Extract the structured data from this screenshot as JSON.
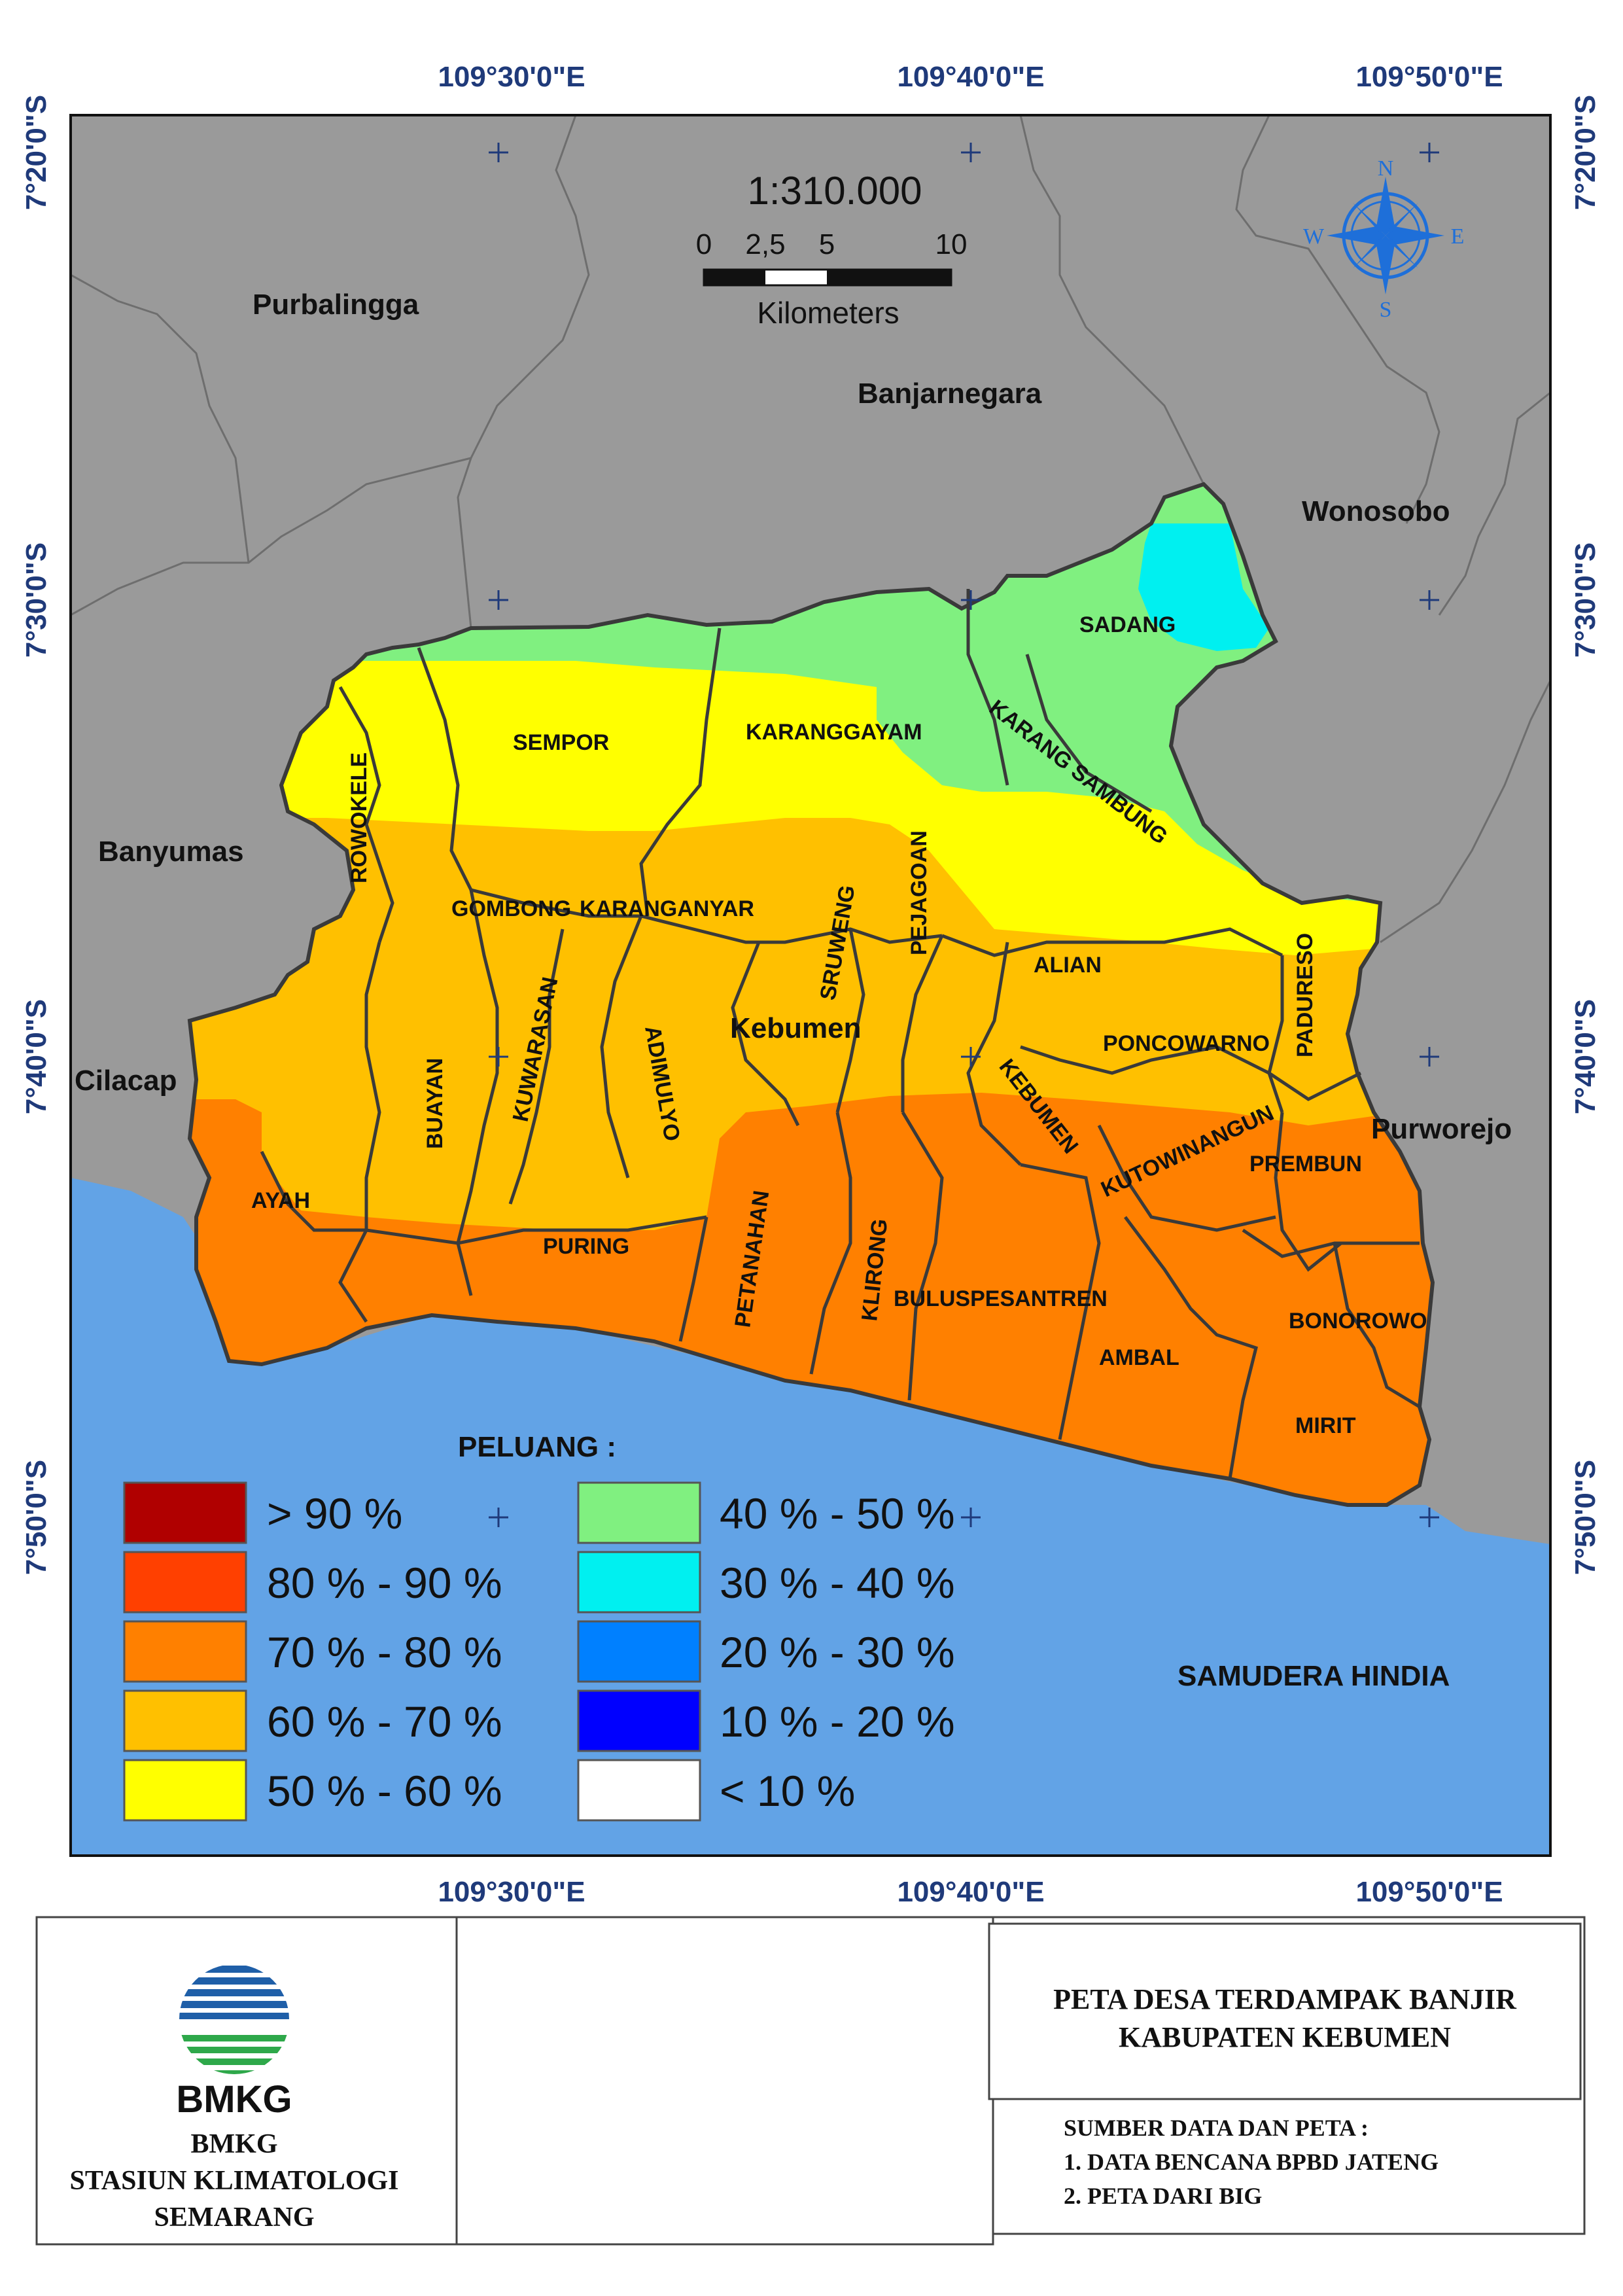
{
  "coords": {
    "lon_labels": [
      "109°30'0\"E",
      "109°40'0\"E",
      "109°50'0\"E"
    ],
    "lat_labels": [
      "7°20'0\"S",
      "7°30'0\"S",
      "7°40'0\"S",
      "7°50'0\"S"
    ]
  },
  "scale": {
    "ratio": "1:310.000",
    "ticks": [
      "0",
      "2,5",
      "5",
      "10"
    ],
    "unit": "Kilometers"
  },
  "compass": {
    "n": "N",
    "s": "S",
    "e": "E",
    "w": "W"
  },
  "regions": {
    "purbalingga": "Purbalingga",
    "banjarnegara": "Banjarnegara",
    "wonosobo": "Wonosobo",
    "banyumas": "Banyumas",
    "cilacap": "Cilacap",
    "purworejo": "Purworejo",
    "kebumen": "Kebumen",
    "ocean": "SAMUDERA HINDIA"
  },
  "districts": {
    "sadang": "SADANG",
    "sempor": "SEMPOR",
    "karanggayam": "KARANGGAYAM",
    "karang_sambung": "KARANG SAMBUNG",
    "rowokele": "ROWOKELE",
    "gombong": "GOMBONG",
    "karanganyar": "KARANGANYAR",
    "sruweng": "SRUWENG",
    "pejagoan": "PEJAGOAN",
    "alian": "ALIAN",
    "padureso": "PADURESO",
    "poncowarno": "PONCOWARNO",
    "buayan": "BUAYAN",
    "kuwarasan": "KUWARASAN",
    "adimulyo": "ADIMULYO",
    "kebumen": "KEBUMEN",
    "kutowinangun": "KUTOWINANGUN",
    "prembun": "PREMBUN",
    "ayah": "AYAH",
    "puring": "PURING",
    "petanahan": "PETANAHAN",
    "klirong": "KLIRONG",
    "buluspesantren": "BULUSPESANTREN",
    "ambal": "AMBAL",
    "bonorowo": "BONOROWO",
    "mirit": "MIRIT"
  },
  "legend": {
    "title": "PELUANG :",
    "items": [
      {
        "label": "> 90 %",
        "color": "#b00000"
      },
      {
        "label": "80 % - 90 %",
        "color": "#ff4000"
      },
      {
        "label": "70 % - 80 %",
        "color": "#ff8000"
      },
      {
        "label": "60 % - 70 %",
        "color": "#ffc000"
      },
      {
        "label": "50 % - 60 %",
        "color": "#ffff00"
      },
      {
        "label": "40 % - 50 %",
        "color": "#80f080"
      },
      {
        "label": "30 % - 40 %",
        "color": "#00f0f0"
      },
      {
        "label": "20 % - 30 %",
        "color": "#0080ff"
      },
      {
        "label": "10 % - 20 %",
        "color": "#0000ff"
      },
      {
        "label": "< 10 %",
        "color": "#ffffff"
      }
    ]
  },
  "colors": {
    "land_outside": "#9a9a9a",
    "ocean": "#62a3e6",
    "coord_text": "#1f3a7a",
    "compass": "#1e6fd9"
  },
  "footer": {
    "logo_text": "BMKG",
    "org_line1": "BMKG",
    "org_line2": "STASIUN KLIMATOLOGI",
    "org_line3": "SEMARANG",
    "title_line1": "PETA DESA TERDAMPAK BANJIR",
    "title_line2": "KABUPATEN KEBUMEN",
    "source_title": "SUMBER DATA DAN PETA :",
    "source_1": "1. DATA BENCANA BPBD JATENG",
    "source_2": "2. PETA DARI BIG"
  }
}
